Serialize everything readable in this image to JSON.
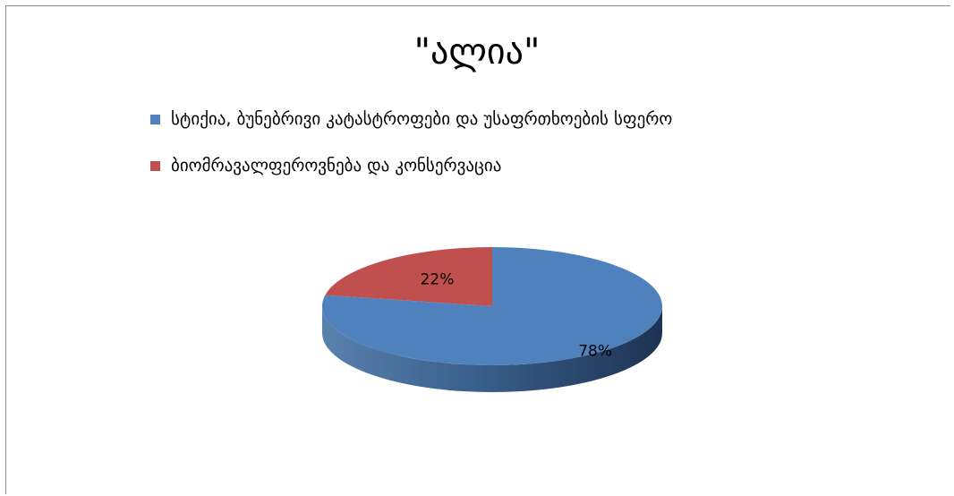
{
  "chart_data": {
    "type": "pie",
    "title": "\"ალია\"",
    "legend_position": "top",
    "style": "3d",
    "categories": [
      "სტიქია, ბუნებრივი კატასტროფები და უსაფრთხოების სფერო",
      "ბიომრავალფეროვნება და კონსერვაცია"
    ],
    "values": [
      78,
      22
    ],
    "data_labels": [
      "78%",
      "22%"
    ],
    "colors": [
      "#4f81bd",
      "#c0504d"
    ]
  }
}
